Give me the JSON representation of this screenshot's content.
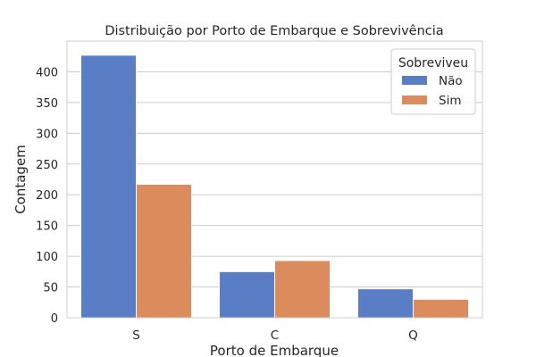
{
  "chart_data": {
    "type": "bar",
    "title": "Distribuição por Porto de Embarque e Sobrevivência",
    "xlabel": "Porto de Embarque",
    "ylabel": "Contagem",
    "categories": [
      "S",
      "C",
      "Q"
    ],
    "series": [
      {
        "name": "Não",
        "values": [
          427,
          75,
          47
        ],
        "color": "#5a7ec6"
      },
      {
        "name": "Sim",
        "values": [
          217,
          93,
          30
        ],
        "color": "#dc8b5c"
      }
    ],
    "ylim": [
      0,
      450
    ],
    "yticks": [
      0,
      50,
      100,
      150,
      200,
      250,
      300,
      350,
      400
    ],
    "grid": true,
    "legend": {
      "title": "Sobreviveu",
      "placement": "top-right"
    }
  }
}
